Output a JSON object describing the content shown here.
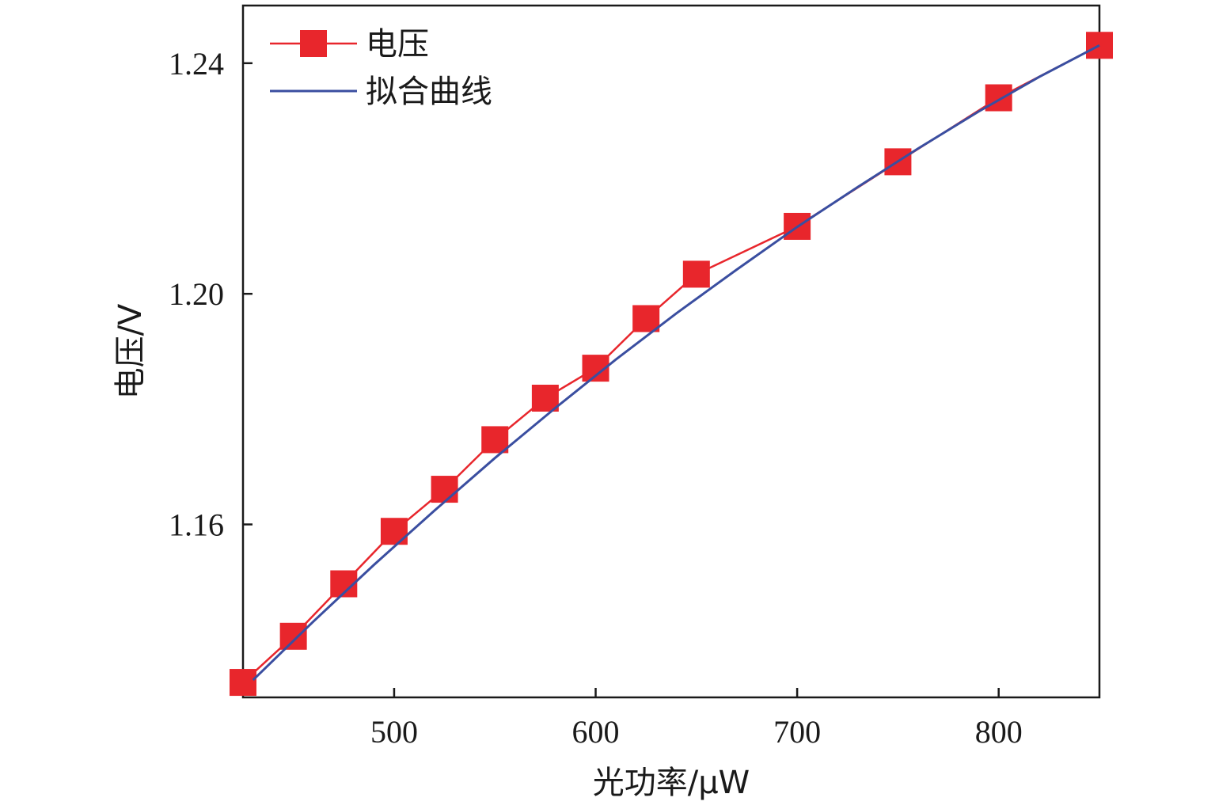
{
  "chart_data": {
    "type": "line",
    "xlabel": "光功率/μW",
    "ylabel": "电压/V",
    "xlim": [
      425,
      850
    ],
    "ylim": [
      1.13,
      1.25
    ],
    "x_ticks": [
      500,
      600,
      700,
      800
    ],
    "x_tick_labels": [
      "500",
      "600",
      "700",
      "800"
    ],
    "y_ticks": [
      1.16,
      1.2,
      1.24
    ],
    "y_tick_labels": [
      "1.16",
      "1.20",
      "1.24"
    ],
    "grid": false,
    "legend": "top-left",
    "series": [
      {
        "name": "电压",
        "color": "#e8262c",
        "marker": "square",
        "x": [
          425,
          450,
          475,
          500,
          525,
          550,
          575,
          600,
          625,
          650,
          700,
          750,
          800,
          850
        ],
        "y": [
          1.1326,
          1.1406,
          1.1497,
          1.1588,
          1.1661,
          1.1747,
          1.1819,
          1.1871,
          1.1957,
          1.2034,
          1.2117,
          1.2229,
          1.234,
          1.2431
        ]
      },
      {
        "name": "拟合曲线",
        "color": "#3a4ea0",
        "marker": "none",
        "x": [
          430,
          460,
          490,
          520,
          550,
          580,
          610,
          640,
          670,
          700,
          730,
          760,
          790,
          820,
          850
        ],
        "y": [
          1.133,
          1.1432,
          1.153,
          1.1624,
          1.1715,
          1.1802,
          1.1886,
          1.1966,
          1.2042,
          1.2116,
          1.2185,
          1.2252,
          1.2316,
          1.2376,
          1.2431
        ]
      }
    ]
  }
}
